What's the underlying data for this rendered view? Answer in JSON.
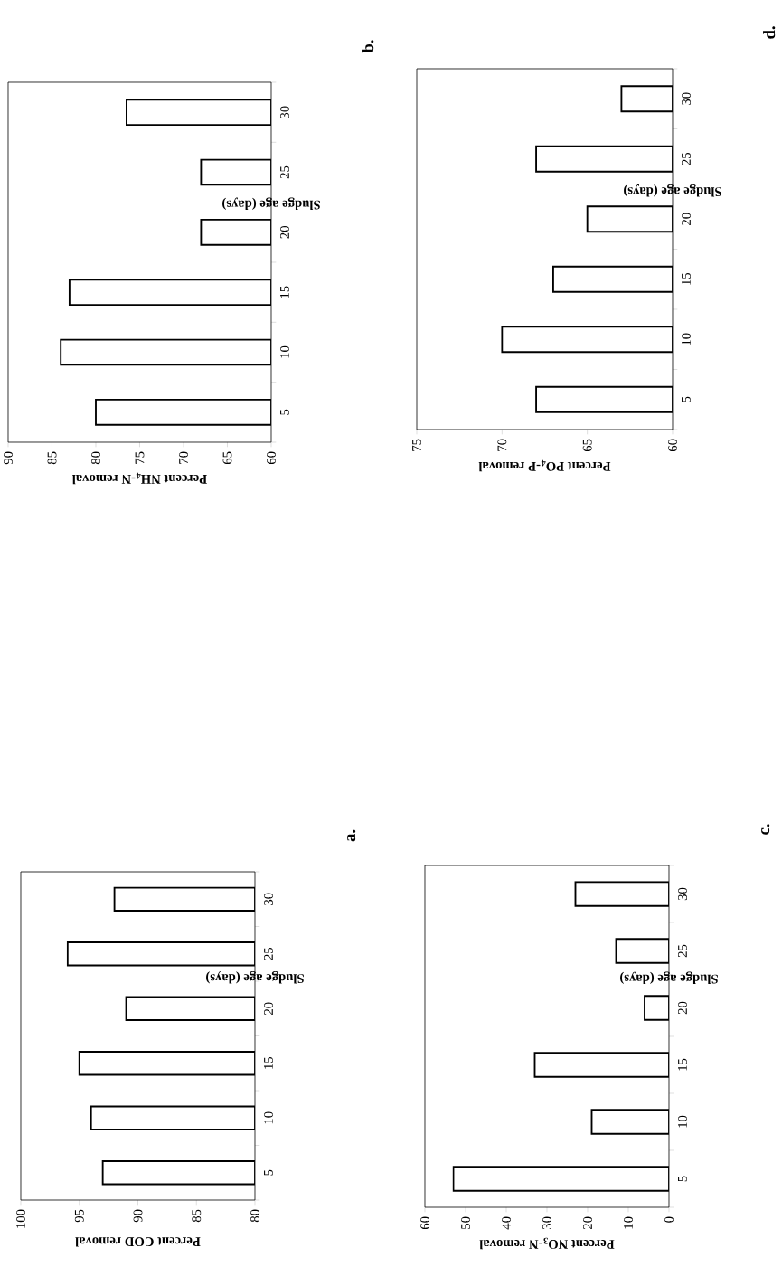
{
  "chart_data": [
    {
      "type": "bar",
      "orientation": "horizontal",
      "annotations": [
        "a."
      ],
      "xlabel": "Percent COD removal",
      "ylabel": "Sludge age (days)",
      "categories": [
        "30",
        "25",
        "20",
        "15",
        "10",
        "5"
      ],
      "values": [
        92,
        96,
        91,
        95,
        94,
        93
      ],
      "color": "#ffffff",
      "xlim": [
        100,
        80
      ],
      "xticks": [
        80,
        85,
        90,
        95,
        100
      ]
    },
    {
      "type": "bar",
      "orientation": "horizontal",
      "annotations": [
        "b."
      ],
      "xlabel": "Percent NH$_{4}$-N removal",
      "ylabel": "Sludge age (days)",
      "categories": [
        "30",
        "25",
        "20",
        "15",
        "10",
        "5"
      ],
      "values": [
        76.5,
        68,
        68,
        83,
        84,
        80
      ],
      "color": "#ffffff",
      "xlim": [
        90,
        60
      ],
      "xticks": [
        60,
        65,
        70,
        75,
        80,
        85,
        90
      ]
    },
    {
      "type": "bar",
      "orientation": "horizontal",
      "annotations": [
        "c."
      ],
      "xlabel": "Percent NO$_{3}$-N removal",
      "ylabel": "Sludge age (days)",
      "categories": [
        "30",
        "25",
        "20",
        "15",
        "10",
        "5"
      ],
      "values": [
        23,
        13,
        6,
        33,
        19,
        53
      ],
      "color": "#ffffff",
      "xlim": [
        60,
        0
      ],
      "xticks": [
        0,
        10,
        20,
        30,
        40,
        50,
        60
      ]
    },
    {
      "type": "bar",
      "orientation": "horizontal",
      "annotations": [
        "d."
      ],
      "xlabel": "Percent PO$_{4}$-P removal",
      "ylabel": "Sludge age (days)",
      "categories": [
        "30",
        "25",
        "20",
        "15",
        "10",
        "5"
      ],
      "values": [
        63,
        68,
        65,
        67,
        70,
        68
      ],
      "color": "#ffffff",
      "xlim": [
        75,
        60
      ],
      "xticks": [
        60,
        65,
        70,
        75
      ]
    }
  ]
}
